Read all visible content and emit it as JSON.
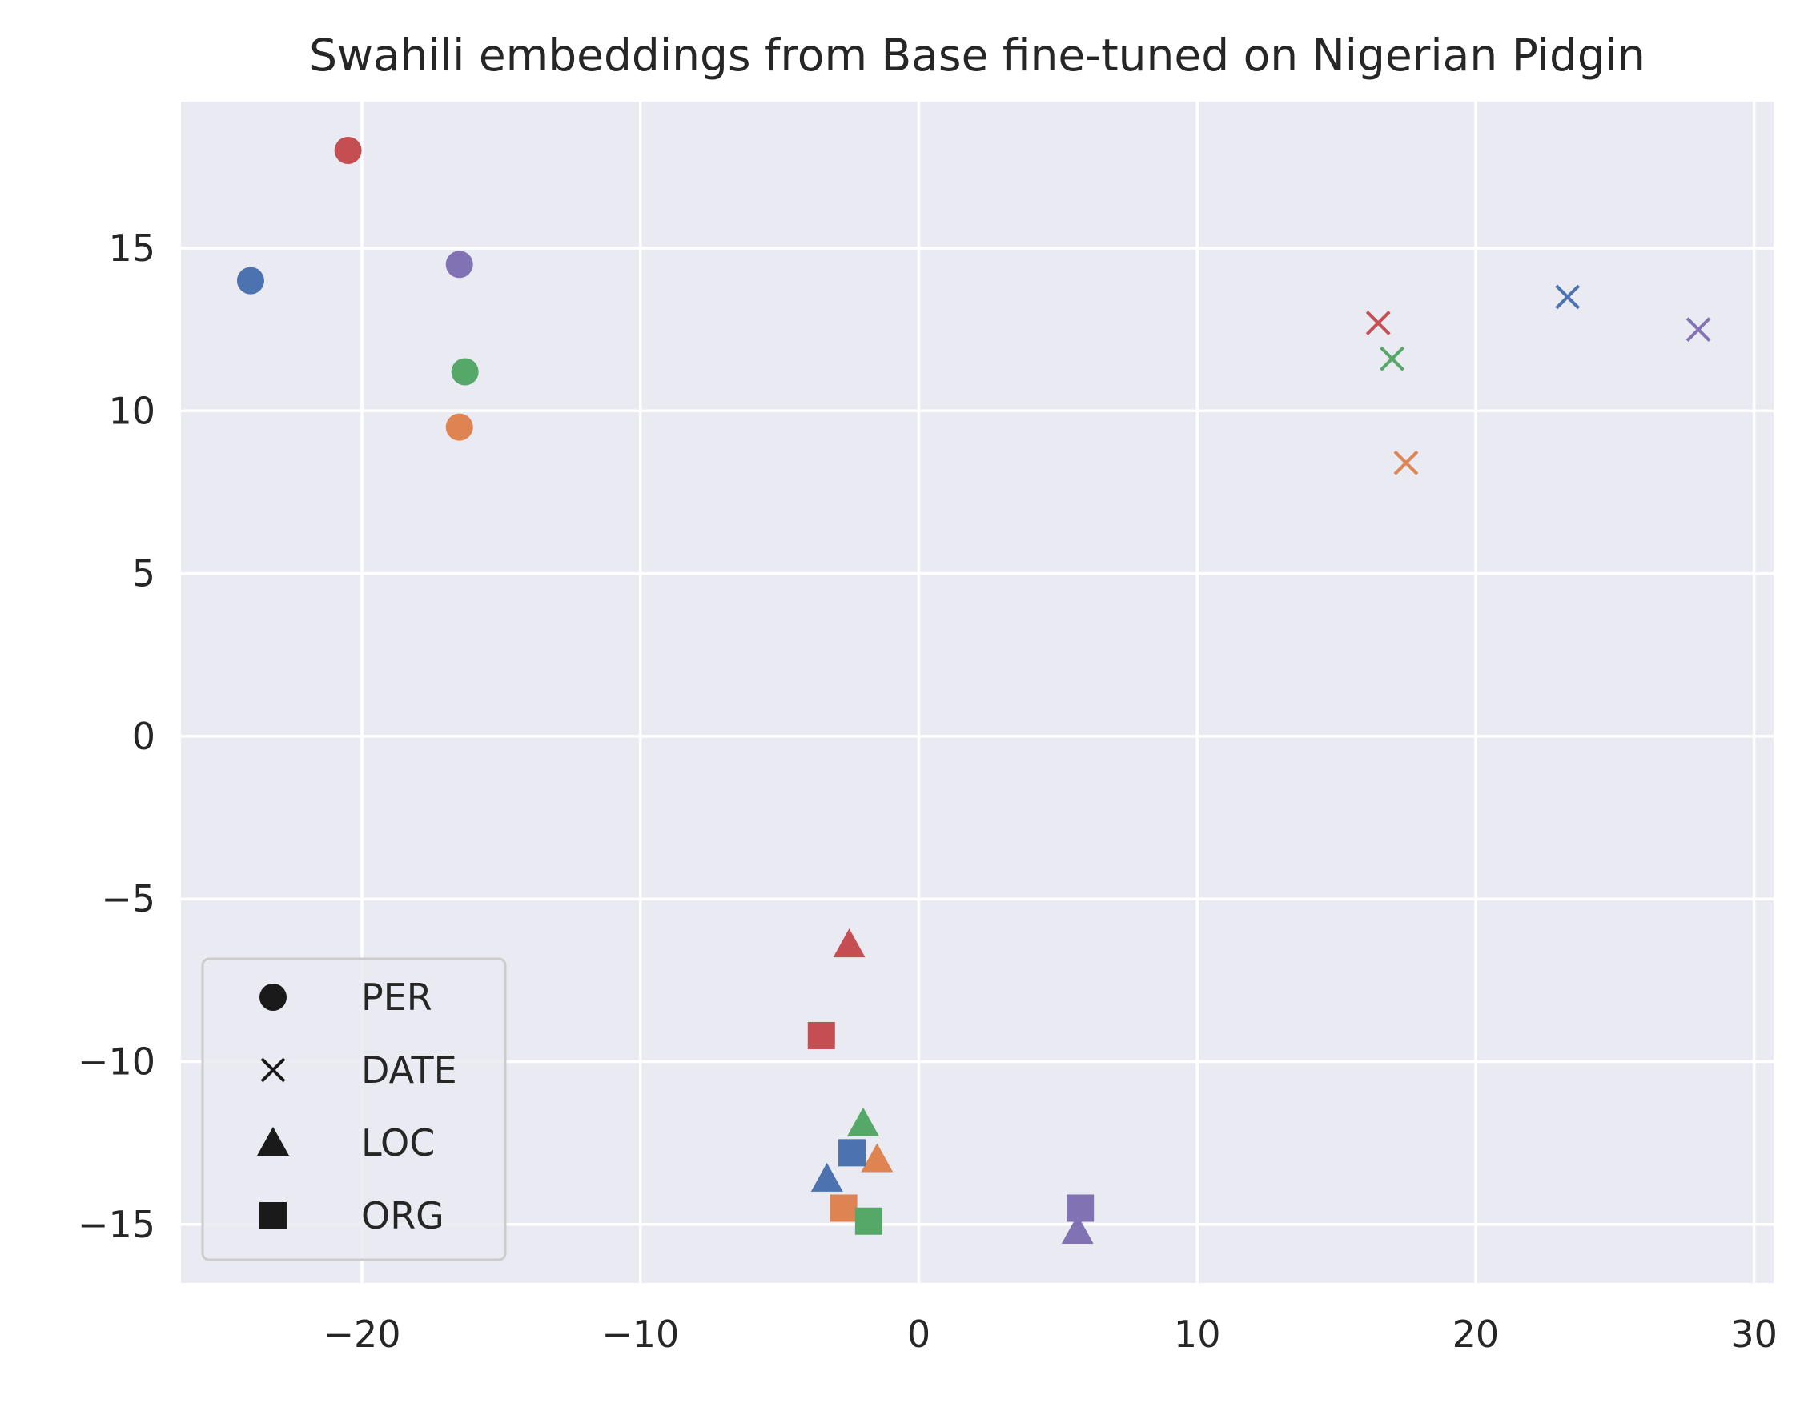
{
  "chart_data": {
    "type": "scatter",
    "title": "Swahili embeddings from Base fine-tuned on Nigerian Pidgin",
    "xlabel": "",
    "ylabel": "",
    "xlim": [
      -26.5,
      30.7
    ],
    "ylim": [
      -16.8,
      19.5
    ],
    "x_ticks": [
      -20,
      -10,
      0,
      10,
      20,
      30
    ],
    "y_ticks": [
      -15,
      -10,
      -5,
      0,
      5,
      10,
      15
    ],
    "x_tick_labels": [
      "−20",
      "−10",
      "0",
      "10",
      "20",
      "30"
    ],
    "y_tick_labels": [
      "−15",
      "−10",
      "−5",
      "0",
      "5",
      "10",
      "15"
    ],
    "grid": true,
    "background_color": "#eaeaf2",
    "grid_color": "#ffffff",
    "legend_placement": "lower-left",
    "legend": [
      {
        "label": "PER",
        "marker": "circle"
      },
      {
        "label": "DATE",
        "marker": "x"
      },
      {
        "label": "LOC",
        "marker": "triangle"
      },
      {
        "label": "ORG",
        "marker": "square"
      }
    ],
    "points": [
      {
        "x": -24.0,
        "y": 14.0,
        "marker": "circle",
        "color": "#4c72b0"
      },
      {
        "x": -20.5,
        "y": 18.0,
        "marker": "circle",
        "color": "#c44e52"
      },
      {
        "x": -16.5,
        "y": 14.5,
        "marker": "circle",
        "color": "#8172b3"
      },
      {
        "x": -16.3,
        "y": 11.2,
        "marker": "circle",
        "color": "#55a868"
      },
      {
        "x": -16.5,
        "y": 9.5,
        "marker": "circle",
        "color": "#dd8452"
      },
      {
        "x": 16.5,
        "y": 12.7,
        "marker": "x",
        "color": "#c44e52"
      },
      {
        "x": 17.0,
        "y": 11.6,
        "marker": "x",
        "color": "#55a868"
      },
      {
        "x": 17.5,
        "y": 8.4,
        "marker": "x",
        "color": "#dd8452"
      },
      {
        "x": 23.3,
        "y": 13.5,
        "marker": "x",
        "color": "#4c72b0"
      },
      {
        "x": 28.0,
        "y": 12.5,
        "marker": "x",
        "color": "#8172b3"
      },
      {
        "x": -2.5,
        "y": -6.4,
        "marker": "triangle",
        "color": "#c44e52"
      },
      {
        "x": -2.0,
        "y": -11.9,
        "marker": "triangle",
        "color": "#55a868"
      },
      {
        "x": -1.5,
        "y": -13.0,
        "marker": "triangle",
        "color": "#dd8452"
      },
      {
        "x": -3.3,
        "y": -13.6,
        "marker": "triangle",
        "color": "#4c72b0"
      },
      {
        "x": 5.7,
        "y": -15.2,
        "marker": "triangle",
        "color": "#8172b3"
      },
      {
        "x": -3.5,
        "y": -9.2,
        "marker": "square",
        "color": "#c44e52"
      },
      {
        "x": -2.4,
        "y": -12.8,
        "marker": "square",
        "color": "#4c72b0"
      },
      {
        "x": -2.7,
        "y": -14.5,
        "marker": "square",
        "color": "#dd8452"
      },
      {
        "x": -1.8,
        "y": -14.9,
        "marker": "square",
        "color": "#55a868"
      },
      {
        "x": 5.8,
        "y": -14.5,
        "marker": "square",
        "color": "#8172b3"
      }
    ]
  }
}
